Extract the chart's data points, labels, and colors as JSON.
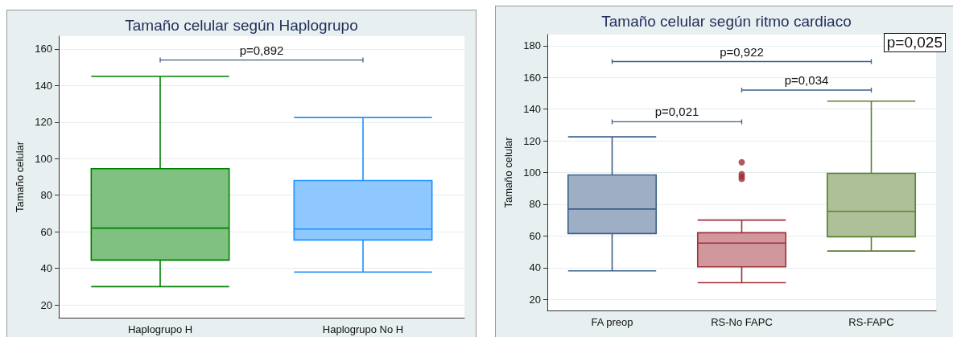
{
  "chart_data": [
    {
      "type": "box",
      "title": "Tamaño celular según Haplogrupo",
      "ylabel": "Tamaño celular",
      "categories": [
        "Haplogrupo H",
        "Haplogrupo No H"
      ],
      "boxes": [
        {
          "low": 30,
          "q1": 44.5,
          "median": 62,
          "q3": 94.5,
          "high": 145
        },
        {
          "low": 38,
          "q1": 55.5,
          "median": 61.5,
          "q3": 88,
          "high": 122.5
        }
      ],
      "colors": [
        "#008000",
        "#1e90ff"
      ],
      "ylim": [
        13,
        167
      ],
      "yticks": [
        20,
        40,
        60,
        80,
        100,
        120,
        140,
        160
      ],
      "grid": "y",
      "annotations": [
        "p=0,892"
      ]
    },
    {
      "type": "box",
      "title": "Tamaño celular según ritmo cardiaco",
      "ylabel": "Tamaño celular",
      "categories": [
        "FA preop",
        "RS-No FAPC",
        "RS-FAPC"
      ],
      "boxes": [
        {
          "low": 38,
          "q1": 61.5,
          "median": 77,
          "q3": 98.5,
          "high": 122.5
        },
        {
          "low": 30.5,
          "q1": 40.5,
          "median": 55.5,
          "q3": 62,
          "high": 70,
          "outliers": [
            106.5,
            99,
            97.5,
            96
          ]
        },
        {
          "low": 50.5,
          "q1": 59.5,
          "median": 75.5,
          "q3": 99.5,
          "high": 145
        }
      ],
      "colors": [
        "#3d5f8a",
        "#a03038",
        "#5a8030"
      ],
      "ylim": [
        13,
        187
      ],
      "yticks": [
        20,
        40,
        60,
        80,
        100,
        120,
        140,
        160,
        180
      ],
      "grid": "y",
      "annotations": [
        "p=0,025",
        "p=0,922",
        "p=0,034",
        "p=0,021"
      ]
    }
  ]
}
